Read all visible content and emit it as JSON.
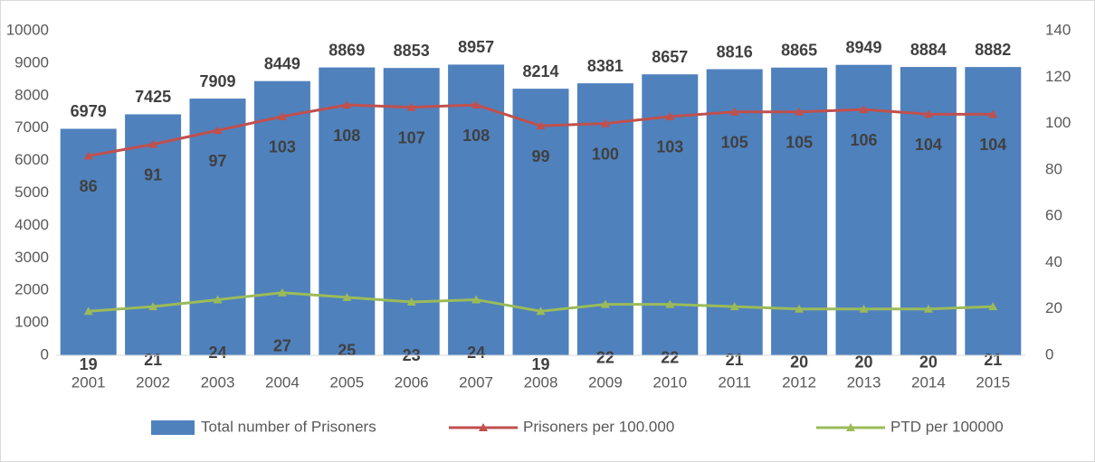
{
  "chart_data": {
    "type": "bar",
    "categories": [
      "2001",
      "2002",
      "2003",
      "2004",
      "2005",
      "2006",
      "2007",
      "2008",
      "2009",
      "2010",
      "2011",
      "2012",
      "2013",
      "2014",
      "2015"
    ],
    "series": [
      {
        "name": "Total number of Prisoners",
        "type": "bar",
        "axis": "y",
        "color": "#4f81bd",
        "values": [
          6979,
          7425,
          7909,
          8449,
          8869,
          8853,
          8957,
          8214,
          8381,
          8657,
          8816,
          8865,
          8949,
          8884,
          8882
        ]
      },
      {
        "name": "Prisoners per 100.000",
        "type": "line",
        "axis": "y2",
        "color": "#c0504d",
        "values": [
          86,
          91,
          97,
          103,
          108,
          107,
          108,
          99,
          100,
          103,
          105,
          105,
          106,
          104,
          104
        ]
      },
      {
        "name": "PTD per 100000",
        "type": "line",
        "axis": "y2",
        "color": "#9bbb59",
        "values": [
          19,
          21,
          24,
          27,
          25,
          23,
          24,
          19,
          22,
          22,
          21,
          20,
          20,
          20,
          21
        ]
      }
    ],
    "ylim": [
      0,
      10000
    ],
    "yticks": [
      0,
      1000,
      2000,
      3000,
      4000,
      5000,
      6000,
      7000,
      8000,
      9000,
      10000
    ],
    "y2lim": [
      0,
      140
    ],
    "y2ticks": [
      0,
      20,
      40,
      60,
      80,
      100,
      120,
      140
    ],
    "legend": "bottom"
  }
}
